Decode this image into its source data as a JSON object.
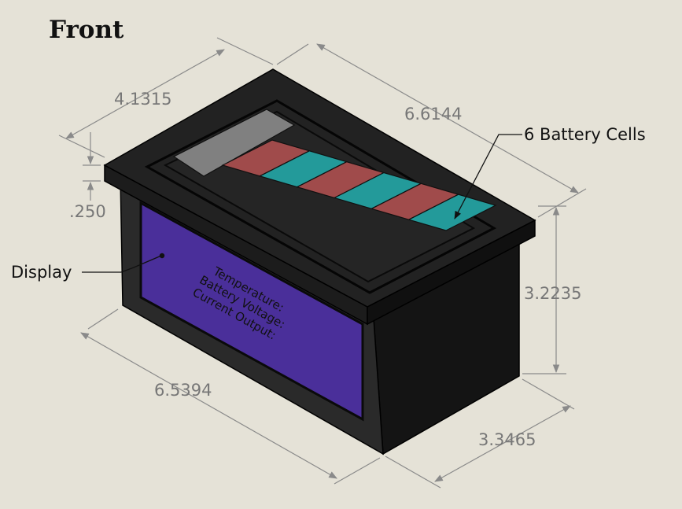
{
  "title": "Front",
  "dimensions": {
    "top_depth": "4.1315",
    "top_width": "6.6144",
    "lid_thickness": ".250",
    "height": "3.2235",
    "base_width": "6.5394",
    "base_depth": "3.3465"
  },
  "callouts": {
    "cells": "6 Battery Cells",
    "display": "Display"
  },
  "display_text": [
    "Temperature:",
    "Battery Voltage:",
    "Current Output:"
  ],
  "colors": {
    "background": "#e5e2d7",
    "box_front": "#2a2a2a",
    "box_side": "#141414",
    "lid_top": "#222222",
    "display": "#4a2f9a",
    "cell_red": "#a04b4b",
    "cell_teal": "#239a9a",
    "indicator_gray": "#808080"
  }
}
